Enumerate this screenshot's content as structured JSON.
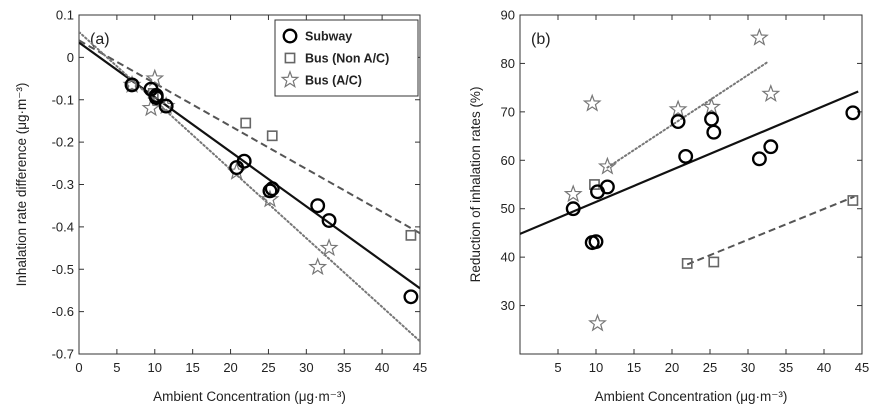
{
  "chart_data": [
    {
      "panel": "(a)",
      "type": "scatter",
      "xlabel": "Ambient Concentration (μg·m⁻³)",
      "ylabel": "Inhalation rate difference (μg·m⁻³)",
      "xlim": [
        0,
        45
      ],
      "ylim": [
        -0.7,
        0.1
      ],
      "xticks": [
        0,
        5,
        10,
        15,
        20,
        25,
        30,
        35,
        40,
        45
      ],
      "yticks": [
        -0.7,
        -0.6,
        -0.5,
        -0.4,
        -0.3,
        -0.2,
        -0.1,
        0,
        0.1
      ],
      "ytick_labels": [
        "-0.7",
        "-0.6",
        "-0.5",
        "-0.4",
        "-0.3",
        "-0.2",
        "-0.1",
        "0",
        "0.1"
      ],
      "grid": false,
      "legend_position": "top-right",
      "series": [
        {
          "name": "Subway",
          "marker": "circle",
          "color": "#000000",
          "points": [
            [
              7.0,
              -0.065
            ],
            [
              9.5,
              -0.075
            ],
            [
              10.2,
              -0.095
            ],
            [
              10.2,
              -0.09
            ],
            [
              11.5,
              -0.115
            ],
            [
              20.8,
              -0.26
            ],
            [
              21.8,
              -0.245
            ],
            [
              25.2,
              -0.315
            ],
            [
              25.5,
              -0.31
            ],
            [
              31.5,
              -0.35
            ],
            [
              33.0,
              -0.385
            ],
            [
              43.8,
              -0.565
            ]
          ],
          "fit": {
            "style": "solid",
            "x": [
              0,
              45
            ],
            "y": [
              0.035,
              -0.545
            ]
          }
        },
        {
          "name": "Bus (Non A/C)",
          "marker": "square",
          "color": "#666666",
          "points": [
            [
              7.0,
              -0.065
            ],
            [
              9.8,
              -0.085
            ],
            [
              22.0,
              -0.155
            ],
            [
              25.5,
              -0.185
            ],
            [
              43.8,
              -0.42
            ]
          ],
          "fit": {
            "style": "dashed",
            "x": [
              0,
              45
            ],
            "y": [
              0.04,
              -0.415
            ]
          }
        },
        {
          "name": "Bus (A/C)",
          "marker": "star",
          "color": "#777777",
          "points": [
            [
              7.0,
              -0.065
            ],
            [
              9.5,
              -0.12
            ],
            [
              10.0,
              -0.05
            ],
            [
              11.5,
              -0.115
            ],
            [
              20.8,
              -0.27
            ],
            [
              25.2,
              -0.335
            ],
            [
              31.5,
              -0.495
            ],
            [
              33.0,
              -0.45
            ]
          ],
          "fit": {
            "style": "dotted",
            "x": [
              0,
              45
            ],
            "y": [
              0.06,
              -0.67
            ]
          }
        }
      ]
    },
    {
      "panel": "(b)",
      "type": "scatter",
      "xlabel": "Ambient Concentration (μg·m⁻³)",
      "ylabel": "Reduction of inhalation rates (%)",
      "xlim": [
        0,
        45
      ],
      "ylim": [
        20,
        90
      ],
      "xticks": [
        5,
        10,
        15,
        20,
        25,
        30,
        35,
        40,
        45
      ],
      "yticks": [
        30,
        40,
        50,
        60,
        70,
        80,
        90
      ],
      "ytick_labels": [
        "30",
        "40",
        "50",
        "60",
        "70",
        "80",
        "90"
      ],
      "grid": false,
      "series": [
        {
          "name": "Subway",
          "marker": "circle",
          "color": "#000000",
          "points": [
            [
              7.0,
              50.0
            ],
            [
              9.5,
              43.0
            ],
            [
              10.0,
              43.2
            ],
            [
              10.2,
              53.5
            ],
            [
              11.5,
              54.5
            ],
            [
              20.8,
              68.0
            ],
            [
              21.8,
              60.8
            ],
            [
              25.2,
              68.5
            ],
            [
              25.5,
              65.8
            ],
            [
              31.5,
              60.3
            ],
            [
              33.0,
              62.8
            ],
            [
              43.8,
              69.8
            ]
          ],
          "fit": {
            "style": "solid",
            "x": [
              0,
              44.5
            ],
            "y": [
              44.8,
              74.2
            ]
          }
        },
        {
          "name": "Bus (Non A/C)",
          "marker": "square",
          "color": "#666666",
          "points": [
            [
              9.8,
              55.0
            ],
            [
              22.0,
              38.7
            ],
            [
              25.5,
              39.0
            ],
            [
              43.8,
              51.7
            ]
          ],
          "fit": {
            "style": "dashed",
            "x": [
              22.0,
              44.0
            ],
            "y": [
              38.5,
              52.5
            ]
          }
        },
        {
          "name": "Bus (A/C)",
          "marker": "star",
          "color": "#777777",
          "points": [
            [
              7.0,
              53.0
            ],
            [
              9.5,
              71.7
            ],
            [
              10.2,
              26.3
            ],
            [
              11.5,
              58.7
            ],
            [
              20.8,
              70.5
            ],
            [
              25.2,
              71.0
            ],
            [
              31.5,
              85.3
            ],
            [
              33.0,
              73.7
            ]
          ],
          "fit": {
            "style": "dotted",
            "x": [
              11.5,
              32.5
            ],
            "y": [
              58.5,
              80.2
            ]
          }
        }
      ]
    }
  ]
}
